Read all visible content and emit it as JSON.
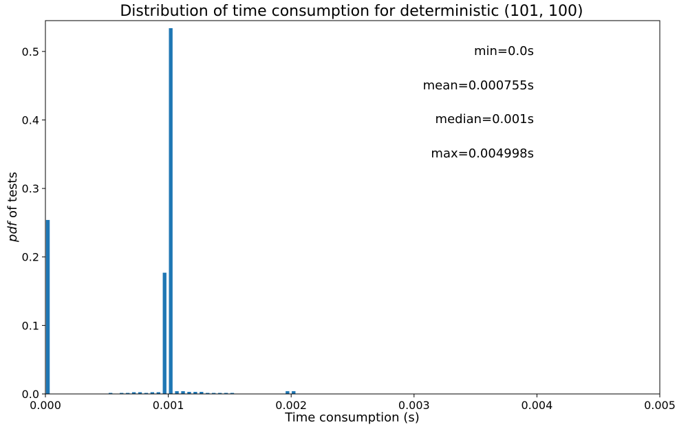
{
  "chart_data": {
    "type": "bar",
    "title": "Distribution of time consumption for deterministic (101, 100)",
    "xlabel": "Time consumption (s)",
    "ylabel_italic": "pdf",
    "ylabel_rest": " of tests",
    "xlim": [
      0,
      0.005
    ],
    "ylim": [
      0,
      0.545
    ],
    "xticks": [
      0,
      0.001,
      0.002,
      0.003,
      0.004,
      0.005
    ],
    "xtick_labels": [
      "0.000",
      "0.001",
      "0.002",
      "0.003",
      "0.004",
      "0.005"
    ],
    "yticks": [
      0,
      0.1,
      0.2,
      0.3,
      0.4,
      0.5
    ],
    "ytick_labels": [
      "0.0",
      "0.1",
      "0.2",
      "0.3",
      "0.4",
      "0.5"
    ],
    "bar_width": 3e-05,
    "color": "#1f77b4",
    "bars": [
      {
        "x": 2e-05,
        "y": 0.254
      },
      {
        "x": 0.00053,
        "y": 0.0015
      },
      {
        "x": 0.00062,
        "y": 0.0015
      },
      {
        "x": 0.00067,
        "y": 0.0015
      },
      {
        "x": 0.00072,
        "y": 0.0025
      },
      {
        "x": 0.00077,
        "y": 0.0025
      },
      {
        "x": 0.00082,
        "y": 0.0015
      },
      {
        "x": 0.00087,
        "y": 0.0025
      },
      {
        "x": 0.00092,
        "y": 0.0025
      },
      {
        "x": 0.00097,
        "y": 0.177
      },
      {
        "x": 0.00102,
        "y": 0.534
      },
      {
        "x": 0.00107,
        "y": 0.004
      },
      {
        "x": 0.00112,
        "y": 0.004
      },
      {
        "x": 0.00117,
        "y": 0.003
      },
      {
        "x": 0.00122,
        "y": 0.003
      },
      {
        "x": 0.00127,
        "y": 0.003
      },
      {
        "x": 0.00132,
        "y": 0.0015
      },
      {
        "x": 0.00137,
        "y": 0.0015
      },
      {
        "x": 0.00142,
        "y": 0.0015
      },
      {
        "x": 0.00147,
        "y": 0.0015
      },
      {
        "x": 0.00152,
        "y": 0.0015
      },
      {
        "x": 0.00197,
        "y": 0.004
      },
      {
        "x": 0.00202,
        "y": 0.004
      }
    ],
    "annotations": [
      {
        "text": "min=0.0s"
      },
      {
        "text": "mean=0.000755s"
      },
      {
        "text": "median=0.001s"
      },
      {
        "text": "max=0.004998s"
      }
    ]
  }
}
